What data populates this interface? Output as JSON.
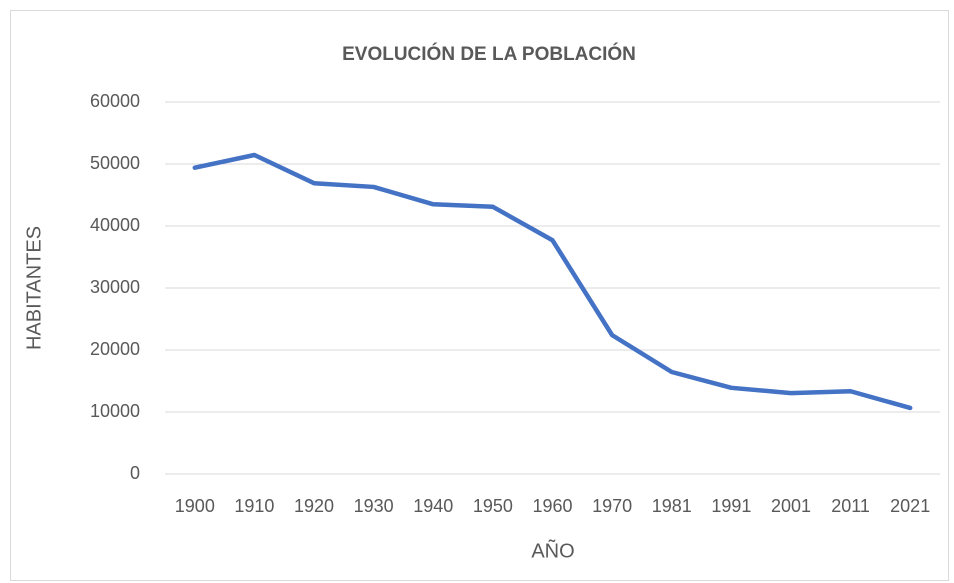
{
  "chart_data": {
    "type": "line",
    "title": "EVOLUCIÓN DE LA POBLACIÓN",
    "x_label": "AÑO",
    "y_label": "HABITANTES",
    "categories": [
      "1900",
      "1910",
      "1920",
      "1930",
      "1940",
      "1950",
      "1960",
      "1970",
      "1981",
      "1991",
      "2001",
      "2011",
      "2021"
    ],
    "values": [
      49400,
      51450,
      46900,
      46300,
      43500,
      43100,
      37700,
      22400,
      16450,
      13900,
      13050,
      13350,
      10650
    ],
    "color": "#4472c4",
    "ylim": [
      0,
      60000
    ],
    "yticks": [
      0,
      10000,
      20000,
      30000,
      40000,
      50000,
      60000
    ],
    "grid": true
  }
}
